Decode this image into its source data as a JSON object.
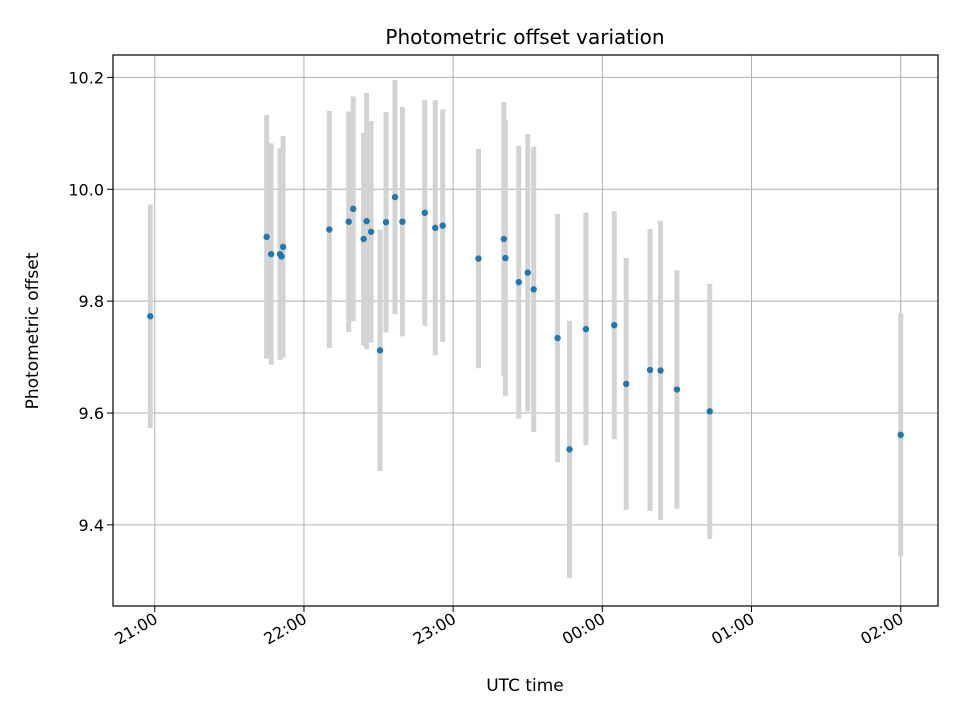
{
  "chart_data": {
    "type": "scatter",
    "title": "Photometric offset variation",
    "xlabel": "UTC time",
    "ylabel": "Photometric offset",
    "x_axis": {
      "unit": "hours since 21:00 UTC",
      "range": [
        -0.28,
        5.25
      ],
      "ticks": [
        {
          "value": 0,
          "label": "21:00"
        },
        {
          "value": 1,
          "label": "22:00"
        },
        {
          "value": 2,
          "label": "23:00"
        },
        {
          "value": 3,
          "label": "00:00"
        },
        {
          "value": 4,
          "label": "01:00"
        },
        {
          "value": 5,
          "label": "02:00"
        }
      ]
    },
    "y_axis": {
      "range": [
        9.255,
        10.24
      ],
      "ticks": [
        {
          "value": 9.4,
          "label": "9.4"
        },
        {
          "value": 9.6,
          "label": "9.6"
        },
        {
          "value": 9.8,
          "label": "9.8"
        },
        {
          "value": 10.0,
          "label": "10.0"
        },
        {
          "value": 10.2,
          "label": "10.2"
        }
      ]
    },
    "grid": true,
    "colors": {
      "point": "#1f77b4",
      "errorbar": "#d3d3d3",
      "grid": "#b0b0b0"
    },
    "points": [
      {
        "x": -0.03,
        "y": 9.773,
        "err": 0.2
      },
      {
        "x": 0.75,
        "y": 9.915,
        "err": 0.218
      },
      {
        "x": 0.78,
        "y": 9.884,
        "err": 0.198
      },
      {
        "x": 0.84,
        "y": 9.884,
        "err": 0.189
      },
      {
        "x": 0.85,
        "y": 9.88,
        "err": 0.18
      },
      {
        "x": 0.86,
        "y": 9.897,
        "err": 0.198
      },
      {
        "x": 1.17,
        "y": 9.928,
        "err": 0.212
      },
      {
        "x": 1.3,
        "y": 9.942,
        "err": 0.197
      },
      {
        "x": 1.33,
        "y": 9.965,
        "err": 0.201
      },
      {
        "x": 1.4,
        "y": 9.911,
        "err": 0.19
      },
      {
        "x": 1.42,
        "y": 9.943,
        "err": 0.229
      },
      {
        "x": 1.45,
        "y": 9.924,
        "err": 0.198
      },
      {
        "x": 1.51,
        "y": 9.712,
        "err": 0.216
      },
      {
        "x": 1.55,
        "y": 9.941,
        "err": 0.197
      },
      {
        "x": 1.61,
        "y": 9.986,
        "err": 0.209
      },
      {
        "x": 1.66,
        "y": 9.942,
        "err": 0.205
      },
      {
        "x": 1.81,
        "y": 9.958,
        "err": 0.202
      },
      {
        "x": 1.88,
        "y": 9.931,
        "err": 0.228
      },
      {
        "x": 1.93,
        "y": 9.935,
        "err": 0.208
      },
      {
        "x": 2.17,
        "y": 9.876,
        "err": 0.196
      },
      {
        "x": 2.34,
        "y": 9.911,
        "err": 0.245
      },
      {
        "x": 2.35,
        "y": 9.877,
        "err": 0.247
      },
      {
        "x": 2.44,
        "y": 9.834,
        "err": 0.244
      },
      {
        "x": 2.5,
        "y": 9.851,
        "err": 0.248
      },
      {
        "x": 2.54,
        "y": 9.821,
        "err": 0.255
      },
      {
        "x": 2.7,
        "y": 9.734,
        "err": 0.222
      },
      {
        "x": 2.78,
        "y": 9.535,
        "err": 0.23
      },
      {
        "x": 2.89,
        "y": 9.75,
        "err": 0.208
      },
      {
        "x": 3.08,
        "y": 9.757,
        "err": 0.204
      },
      {
        "x": 3.16,
        "y": 9.652,
        "err": 0.225
      },
      {
        "x": 3.32,
        "y": 9.677,
        "err": 0.252
      },
      {
        "x": 3.39,
        "y": 9.676,
        "err": 0.267
      },
      {
        "x": 3.5,
        "y": 9.642,
        "err": 0.213
      },
      {
        "x": 3.72,
        "y": 9.603,
        "err": 0.228
      },
      {
        "x": 5.0,
        "y": 9.561,
        "err": 0.217
      }
    ]
  }
}
